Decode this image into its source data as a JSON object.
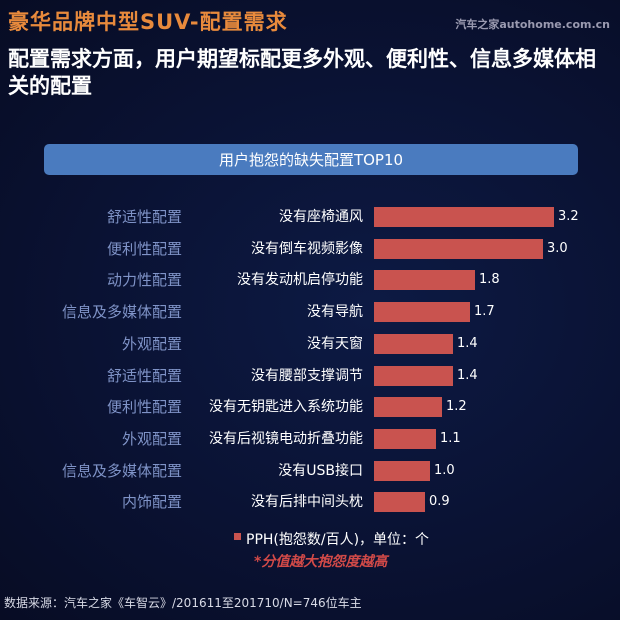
{
  "header": {
    "title": "豪华品牌中型SUV-配置需求",
    "watermark": "汽车之家autohome.com.cn",
    "subtitle": "配置需求方面，用户期望标配更多外观、便利性、信息多媒体相关的配置"
  },
  "banner": {
    "label": "用户抱怨的缺失配置TOP10"
  },
  "chart_data": {
    "type": "bar",
    "orientation": "horizontal",
    "title": "用户抱怨的缺失配置TOP10",
    "categories": [
      "没有座椅通风",
      "没有倒车视频影像",
      "没有发动机启停功能",
      "没有导航",
      "没有天窗",
      "没有腰部支撑调节",
      "没有无钥匙进入系统功能",
      "没有后视镜电动折叠功能",
      "没有USB接口",
      "没有后排中间头枕"
    ],
    "groups": [
      "舒适性配置",
      "便利性配置",
      "动力性配置",
      "信息及多媒体配置",
      "外观配置",
      "舒适性配置",
      "便利性配置",
      "外观配置",
      "信息及多媒体配置",
      "内饰配置"
    ],
    "values": [
      3.2,
      3.0,
      1.8,
      1.7,
      1.4,
      1.4,
      1.2,
      1.1,
      1.0,
      0.9
    ],
    "series": [
      {
        "name": "PPH(抱怨数/百人)，单位：个",
        "values": [
          3.2,
          3.0,
          1.8,
          1.7,
          1.4,
          1.4,
          1.2,
          1.1,
          1.0,
          0.9
        ]
      }
    ],
    "xlabel": "",
    "ylabel": "",
    "grid": false,
    "legend_position": "bottom",
    "bar_color": "#c9534f",
    "annotations": [
      "*分值越大抱怨度越高"
    ]
  },
  "rows": [
    {
      "group": "舒适性配置",
      "item": "没有座椅通风",
      "value": "3.2"
    },
    {
      "group": "便利性配置",
      "item": "没有倒车视频影像",
      "value": "3.0"
    },
    {
      "group": "动力性配置",
      "item": "没有发动机启停功能",
      "value": "1.8"
    },
    {
      "group": "信息及多媒体配置",
      "item": "没有导航",
      "value": "1.7"
    },
    {
      "group": "外观配置",
      "item": "没有天窗",
      "value": "1.4"
    },
    {
      "group": "舒适性配置",
      "item": "没有腰部支撑调节",
      "value": "1.4"
    },
    {
      "group": "便利性配置",
      "item": "没有无钥匙进入系统功能",
      "value": "1.2"
    },
    {
      "group": "外观配置",
      "item": "没有后视镜电动折叠功能",
      "value": "1.1"
    },
    {
      "group": "信息及多媒体配置",
      "item": "没有USB接口",
      "value": "1.0"
    },
    {
      "group": "内饰配置",
      "item": "没有后排中间头枕",
      "value": "0.9"
    }
  ],
  "legend": {
    "label": "PPH(抱怨数/百人)，单位：个"
  },
  "note": "*分值越大抱怨度越高",
  "source": "数据来源：汽车之家《车智云》/201611至201710/N=746位车主"
}
